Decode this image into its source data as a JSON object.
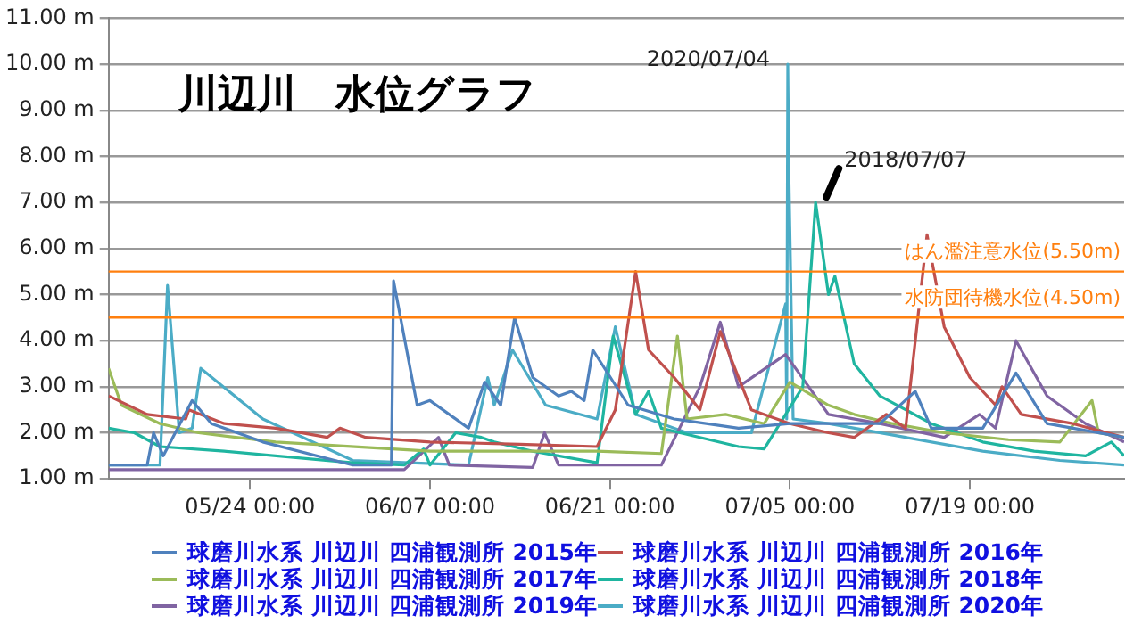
{
  "chart_data": {
    "type": "line",
    "title": "川辺川　水位グラフ",
    "xlim": [
      "--05-13",
      "--07-31"
    ],
    "xticks": [
      {
        "value": "--05-24",
        "label": "05/24 00:00"
      },
      {
        "value": "--06-07",
        "label": "06/07 00:00"
      },
      {
        "value": "--06-21",
        "label": "06/21 00:00"
      },
      {
        "value": "--07-05",
        "label": "07/05 00:00"
      },
      {
        "value": "--07-19",
        "label": "07/19 00:00"
      }
    ],
    "ylim": [
      1,
      11
    ],
    "yticks": [
      {
        "value": 1,
        "label": "1.00 m"
      },
      {
        "value": 2,
        "label": "2.00 m"
      },
      {
        "value": 3,
        "label": "3.00 m"
      },
      {
        "value": 4,
        "label": "4.00 m"
      },
      {
        "value": 5,
        "label": "5.00 m"
      },
      {
        "value": 6,
        "label": "6.00 m"
      },
      {
        "value": 7,
        "label": "7.00 m"
      },
      {
        "value": 8,
        "label": "8.00 m"
      },
      {
        "value": 9,
        "label": "9.00 m"
      },
      {
        "value": 10,
        "label": "10.00 m"
      },
      {
        "value": 11,
        "label": "11.00 m"
      }
    ],
    "grid": "y",
    "legend": "bottom",
    "marker": "none",
    "line_style": "solid",
    "ref_lines": [
      {
        "axis": "y",
        "value": 5.5,
        "label": "はん濫注意水位(5.50m)",
        "color": "#ff7f0e"
      },
      {
        "axis": "y",
        "value": 4.5,
        "label": "水防団待機水位(4.50m)",
        "color": "#ff7f0e"
      }
    ],
    "annotations": [
      {
        "text": "2020/07/04",
        "x": "--07-04T20:00",
        "y": 10
      },
      {
        "text": "2018/07/07",
        "x": "--07-07",
        "y": 7
      }
    ],
    "series": [
      {
        "name": "球磨川水系 川辺川 四浦観測所 2015年",
        "color": "#4f81bd",
        "x": [
          "--05-13",
          "--05-16",
          "--05-16T12:00",
          "--05-17T06:00",
          "--05-19T12:00",
          "--05-21",
          "--05-25",
          "--06-01",
          "--06-04",
          "--06-04T04:00",
          "--06-06",
          "--06-07",
          "--06-10",
          "--06-11T06:00",
          "--06-12T12:00",
          "--06-13T14:00",
          "--06-15",
          "--06-17",
          "--06-18",
          "--06-19",
          "--06-19T16:00",
          "--06-22T10:00",
          "--06-26",
          "--07-01",
          "--07-05",
          "--07-12",
          "--07-14T18:00",
          "--07-16",
          "--07-20",
          "--07-22T14:00",
          "--07-25",
          "--07-31"
        ],
        "values": [
          1.3,
          1.3,
          2.0,
          1.5,
          2.7,
          2.2,
          1.8,
          1.3,
          1.3,
          5.3,
          2.6,
          2.7,
          2.1,
          3.1,
          2.6,
          4.5,
          3.2,
          2.8,
          2.9,
          2.7,
          3.8,
          2.6,
          2.3,
          2.1,
          2.2,
          2.2,
          2.9,
          2.1,
          2.1,
          3.3,
          2.2,
          1.9
        ]
      },
      {
        "name": "球磨川水系 川辺川 四浦観測所 2016年",
        "color": "#c0504d",
        "x": [
          "--05-13",
          "--05-16",
          "--05-19",
          "--05-19T06:00",
          "--05-22",
          "--05-26",
          "--05-30",
          "--05-31",
          "--06-02",
          "--06-07",
          "--06-14",
          "--06-20",
          "--06-21T10:00",
          "--06-23",
          "--06-24",
          "--06-26",
          "--06-28",
          "--06-29T14:00",
          "--07-02",
          "--07-05",
          "--07-08",
          "--07-10",
          "--07-12T12:00",
          "--07-14",
          "--07-15T16:00",
          "--07-17",
          "--07-19",
          "--07-21",
          "--07-21T12:00",
          "--07-23",
          "--07-27",
          "--07-31"
        ],
        "values": [
          2.8,
          2.4,
          2.3,
          2.5,
          2.2,
          2.1,
          1.9,
          2.1,
          1.9,
          1.8,
          1.75,
          1.7,
          2.5,
          5.5,
          3.8,
          3.2,
          2.5,
          4.2,
          2.5,
          2.2,
          2.0,
          1.9,
          2.4,
          2.1,
          6.3,
          4.3,
          3.2,
          2.6,
          3.0,
          2.4,
          2.2,
          1.9
        ]
      },
      {
        "name": "球磨川水系 川辺川 四浦観測所 2017年",
        "color": "#9bbb59",
        "x": [
          "--05-13",
          "--05-14",
          "--05-17",
          "--05-20",
          "--05-26",
          "--06-07",
          "--06-20",
          "--06-25",
          "--06-26T06:00",
          "--06-27",
          "--06-30",
          "--07-03",
          "--07-05",
          "--07-08",
          "--07-10",
          "--07-13",
          "--07-17",
          "--07-22",
          "--07-26",
          "--07-28T12:00",
          "--07-29",
          "--07-31"
        ],
        "values": [
          3.4,
          2.6,
          2.2,
          2.0,
          1.8,
          1.6,
          1.6,
          1.55,
          4.1,
          2.3,
          2.4,
          2.2,
          3.1,
          2.6,
          2.4,
          2.2,
          2.0,
          1.85,
          1.8,
          2.7,
          2.0,
          1.9
        ]
      },
      {
        "name": "球磨川水系 川辺川 四浦観測所 2018年",
        "color": "#1fb5a0",
        "x": [
          "--05-13",
          "--05-15",
          "--05-17",
          "--05-22",
          "--06-01",
          "--06-05",
          "--06-06T12:00",
          "--06-07",
          "--06-09",
          "--06-11",
          "--06-12",
          "--06-15",
          "--06-20",
          "--06-21T06:00",
          "--06-23",
          "--06-24",
          "--06-25",
          "--06-28",
          "--07-01",
          "--07-03",
          "--07-06",
          "--07-07",
          "--07-08",
          "--07-08T12:00",
          "--07-10",
          "--07-12",
          "--07-16",
          "--07-20",
          "--07-24",
          "--07-28",
          "--07-30",
          "--07-31"
        ],
        "values": [
          2.1,
          2.0,
          1.7,
          1.6,
          1.35,
          1.3,
          1.65,
          1.3,
          2.0,
          1.9,
          1.8,
          1.6,
          1.35,
          4.1,
          2.4,
          2.9,
          2.1,
          1.9,
          1.7,
          1.65,
          3.0,
          7.0,
          5.0,
          5.4,
          3.5,
          2.8,
          2.2,
          1.8,
          1.6,
          1.5,
          1.8,
          1.5
        ]
      },
      {
        "name": "球磨川水系 川辺川 四浦観測所 2019年",
        "color": "#8064a2",
        "x": [
          "--05-13",
          "--06-05",
          "--06-07T16:00",
          "--06-08T12:00",
          "--06-15",
          "--06-15T22:00",
          "--06-17",
          "--06-25",
          "--06-28",
          "--06-29T14:00",
          "--07-01",
          "--07-04T16:00",
          "--07-08",
          "--07-12",
          "--07-17",
          "--07-19T18:00",
          "--07-21",
          "--07-22T14:00",
          "--07-25",
          "--07-28",
          "--07-31"
        ],
        "values": [
          1.2,
          1.2,
          1.9,
          1.3,
          1.25,
          2.0,
          1.3,
          1.3,
          3.0,
          4.4,
          3.0,
          3.7,
          2.4,
          2.2,
          1.9,
          2.4,
          2.1,
          4.0,
          2.8,
          2.2,
          1.8
        ]
      },
      {
        "name": "球磨川水系 川辺川 四浦観測所 2020年",
        "color": "#4bacc6",
        "x": [
          "--05-13",
          "--05-17",
          "--05-17T14:00",
          "--05-18T12:00",
          "--05-19T12:00",
          "--05-20T04:00",
          "--05-25",
          "--06-01",
          "--06-10",
          "--06-11T12:00",
          "--06-12",
          "--06-13T10:00",
          "--06-16",
          "--06-20",
          "--06-21T10:00",
          "--06-23",
          "--06-27",
          "--07-02",
          "--07-04T16:00",
          "--07-04T18:00",
          "--07-04T20:00",
          "--07-04T22:00",
          "--07-05T06:00",
          "--07-08",
          "--07-14",
          "--07-20",
          "--07-26",
          "--07-31"
        ],
        "values": [
          1.3,
          1.3,
          5.2,
          2.0,
          2.1,
          3.4,
          2.3,
          1.4,
          1.3,
          3.2,
          2.6,
          3.8,
          2.6,
          2.3,
          4.3,
          2.4,
          2.0,
          2.0,
          4.8,
          2.3,
          10.0,
          7.7,
          2.3,
          2.2,
          1.9,
          1.6,
          1.4,
          1.3
        ]
      }
    ]
  }
}
